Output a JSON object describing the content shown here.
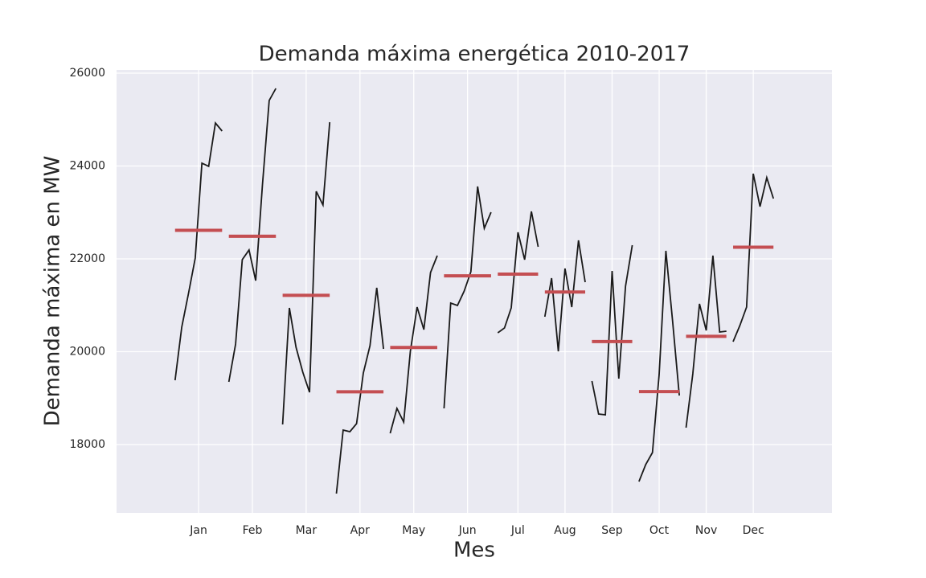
{
  "chart_data": {
    "type": "month_plot",
    "title": "Demanda máxima energética 2010-2017",
    "xlabel": "Mes",
    "ylabel": "Demanda máxima en MW",
    "categories": [
      "Jan",
      "Feb",
      "Mar",
      "Apr",
      "May",
      "Jun",
      "Jul",
      "Aug",
      "Sep",
      "Oct",
      "Nov",
      "Dec"
    ],
    "values": [
      [
        19385,
        20528,
        21255,
        22017,
        24061,
        23992,
        24926,
        24753
      ],
      [
        19350,
        20165,
        21983,
        22190,
        21532,
        23593,
        25411,
        25671
      ],
      [
        18433,
        20944,
        20095,
        19558,
        19125,
        23455,
        23160,
        24944
      ],
      [
        16944,
        18312,
        18277,
        18450,
        19541,
        20130,
        21377,
        20061
      ],
      [
        18242,
        18779,
        18485,
        20009,
        20961,
        20476,
        21706,
        22069
      ],
      [
        18779,
        21048,
        20996,
        21307,
        21723,
        23558,
        22658,
        23004
      ],
      [
        20407,
        20511,
        20944,
        22571,
        21983,
        23022,
        22260
      ],
      [
        20753,
        21584,
        20009,
        21792,
        20961,
        22398,
        21498
      ],
      [
        19368,
        18658,
        18641,
        21740,
        19420,
        21411,
        22294
      ],
      [
        17204,
        17568,
        17827,
        19506,
        22173,
        20649,
        19056
      ],
      [
        18364,
        19524,
        21030,
        20459,
        22069,
        20424,
        20441
      ],
      [
        20216,
        20563,
        20961,
        23836,
        23126,
        23749,
        23299
      ]
    ],
    "means": [
      22615,
      22487,
      21214,
      19137,
      20091,
      21634,
      21671,
      21285,
      20219,
      19140,
      20330,
      22250
    ],
    "color": "#1a1a1a",
    "mean_color": "#c44e52",
    "ylim": [
      16528,
      26069
    ],
    "yticks": [
      18000,
      20000,
      22000,
      24000,
      26000
    ],
    "grid": true
  }
}
